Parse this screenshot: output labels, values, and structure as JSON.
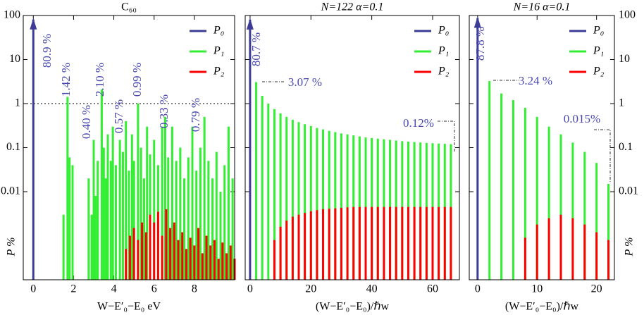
{
  "chart_data": [
    {
      "type": "bar",
      "title": "C₆₀",
      "xlabel": "W−E′₀−E₀     eV",
      "ylabel": "P  %",
      "xlim": [
        -0.5,
        10
      ],
      "xticks": [
        0,
        2,
        4,
        6,
        8
      ],
      "ylim": [
        0.0001,
        100
      ],
      "yticks": [
        0.01,
        0.1,
        1,
        10,
        100
      ],
      "log_y": true,
      "ytick_side": "left",
      "legend": "upper right",
      "reference_line": 1,
      "series": [
        {
          "name": "P₀",
          "color": "#3c3c96",
          "x": [
            0
          ],
          "values": [
            80.9
          ]
        },
        {
          "name": "P₁",
          "color": "#33ee33",
          "x": [
            1.5,
            1.7,
            1.8,
            1.95,
            2.75,
            2.9,
            3.0,
            3.1,
            3.2,
            3.4,
            3.5,
            3.6,
            3.7,
            3.85,
            3.95,
            4.1,
            4.3,
            4.45,
            4.6,
            4.75,
            4.9,
            5.0,
            5.2,
            5.35,
            5.5,
            5.65,
            5.8,
            6.0,
            6.2,
            6.4,
            6.55,
            6.7,
            6.9,
            7.1,
            7.3,
            7.5,
            7.7,
            7.9,
            8.1,
            8.3,
            8.5,
            8.7,
            8.9,
            9.1,
            9.3,
            9.5,
            9.7,
            9.9
          ],
          "values": [
            0.003,
            1.42,
            0.06,
            0.04,
            0.02,
            0.003,
            0.15,
            0.008,
            0.05,
            2.1,
            0.1,
            0.02,
            0.2,
            0.05,
            0.3,
            0.04,
            0.15,
            0.08,
            0.4,
            0.03,
            0.2,
            0.05,
            1.0,
            0.1,
            0.02,
            0.3,
            0.07,
            0.15,
            0.04,
            0.3,
            0.5,
            0.06,
            0.3,
            0.05,
            0.1,
            0.02,
            0.06,
            0.3,
            0.03,
            0.1,
            0.5,
            0.05,
            0.02,
            0.08,
            0.01,
            0.04,
            0.3,
            0.02
          ]
        },
        {
          "name": "P₂",
          "color": "#ff0000",
          "x": [
            4.6,
            4.8,
            5.0,
            5.2,
            5.4,
            5.6,
            5.8,
            6.0,
            6.2,
            6.4,
            6.6,
            6.8,
            7.0,
            7.2,
            7.4,
            7.6,
            7.8,
            8.0,
            8.2,
            8.4,
            8.6,
            8.8,
            9.0,
            9.2,
            9.4,
            9.6,
            9.8,
            10.0
          ],
          "values": [
            0.0005,
            0.001,
            0.0015,
            0.0008,
            0.002,
            0.0012,
            0.003,
            0.002,
            0.0035,
            0.001,
            0.004,
            0.0015,
            0.002,
            0.0008,
            0.0012,
            0.0005,
            0.0009,
            0.0006,
            0.0015,
            0.0004,
            0.001,
            0.0006,
            0.0008,
            0.0003,
            0.0007,
            0.0004,
            0.0006,
            0.0003
          ]
        }
      ],
      "annotations": [
        "80.9 %",
        "1.42 %",
        "0.40 %",
        "2.10 %",
        "0.57 %",
        "0.99 %",
        "0.33 %",
        "0.79 %"
      ]
    },
    {
      "type": "bar",
      "title": "N=122     α=0.1",
      "xlabel": "(W−E′₀−E₀)/ℏw",
      "xlim": [
        -1.6,
        68.8
      ],
      "xticks": [
        0,
        20,
        40,
        60
      ],
      "ylim": [
        0.0001,
        100
      ],
      "yticks": [
        0.01,
        0.1,
        1,
        10,
        100
      ],
      "log_y": true,
      "ytick_side": "none",
      "legend": "upper right",
      "series": [
        {
          "name": "P₀",
          "color": "#3c3c96",
          "x": [
            0
          ],
          "values": [
            80.7
          ]
        },
        {
          "name": "P₁",
          "color": "#33ee33",
          "x": [
            2,
            4,
            6,
            8,
            10,
            12,
            14,
            16,
            18,
            20,
            22,
            24,
            26,
            28,
            30,
            32,
            34,
            36,
            38,
            40,
            42,
            44,
            46,
            48,
            50,
            52,
            54,
            56,
            58,
            60,
            62,
            64,
            66
          ],
          "values": [
            3.07,
            1.5,
            1.0,
            0.75,
            0.6,
            0.5,
            0.43,
            0.38,
            0.34,
            0.31,
            0.28,
            0.26,
            0.24,
            0.225,
            0.21,
            0.2,
            0.19,
            0.18,
            0.17,
            0.165,
            0.16,
            0.155,
            0.15,
            0.145,
            0.14,
            0.137,
            0.134,
            0.131,
            0.128,
            0.126,
            0.124,
            0.122,
            0.12
          ]
        },
        {
          "name": "P₂",
          "color": "#ff0000",
          "x": [
            8,
            10,
            12,
            14,
            16,
            18,
            20,
            22,
            24,
            26,
            28,
            30,
            32,
            34,
            36,
            38,
            40,
            42,
            44,
            46,
            48,
            50,
            52,
            54,
            56,
            58,
            60,
            62,
            64,
            66
          ],
          "values": [
            0.0008,
            0.0016,
            0.0022,
            0.0027,
            0.003,
            0.0033,
            0.0036,
            0.0038,
            0.004,
            0.0041,
            0.0042,
            0.0043,
            0.0044,
            0.0045,
            0.0045,
            0.0045,
            0.0045,
            0.0045,
            0.0045,
            0.0045,
            0.0045,
            0.0045,
            0.0045,
            0.0045,
            0.0045,
            0.0045,
            0.0045,
            0.0045,
            0.0045,
            0.0045
          ]
        }
      ],
      "annotations": [
        "80.7 %",
        "3.07 %",
        "0.12%"
      ]
    },
    {
      "type": "bar",
      "title": "N=16     α=0.1",
      "xlabel": "(W−E′₀−E₀)/ℏw",
      "ylabel": "P  %",
      "xlim": [
        -1.4,
        23
      ],
      "xticks": [
        0,
        10,
        20
      ],
      "ylim": [
        0.0001,
        100
      ],
      "yticks": [
        0.01,
        0.1,
        1,
        10,
        100
      ],
      "log_y": true,
      "ytick_side": "right",
      "legend": "upper right",
      "series": [
        {
          "name": "P₀",
          "color": "#3c3c96",
          "x": [
            0
          ],
          "values": [
            87.8
          ]
        },
        {
          "name": "P₁",
          "color": "#33ee33",
          "x": [
            2,
            4,
            6,
            8,
            10,
            12,
            14,
            16,
            18,
            20,
            22
          ],
          "values": [
            3.24,
            1.7,
            1.2,
            0.8,
            0.5,
            0.3,
            0.2,
            0.13,
            0.08,
            0.045,
            0.015
          ]
        },
        {
          "name": "P₂",
          "color": "#ff0000",
          "x": [
            8,
            10,
            12,
            14,
            16,
            18,
            20,
            22
          ],
          "values": [
            0.0009,
            0.0018,
            0.0025,
            0.003,
            0.0025,
            0.0018,
            0.0012,
            0.0008
          ]
        }
      ],
      "annotations": [
        "87.8 %",
        "3.24 %",
        "0.015%"
      ]
    }
  ]
}
